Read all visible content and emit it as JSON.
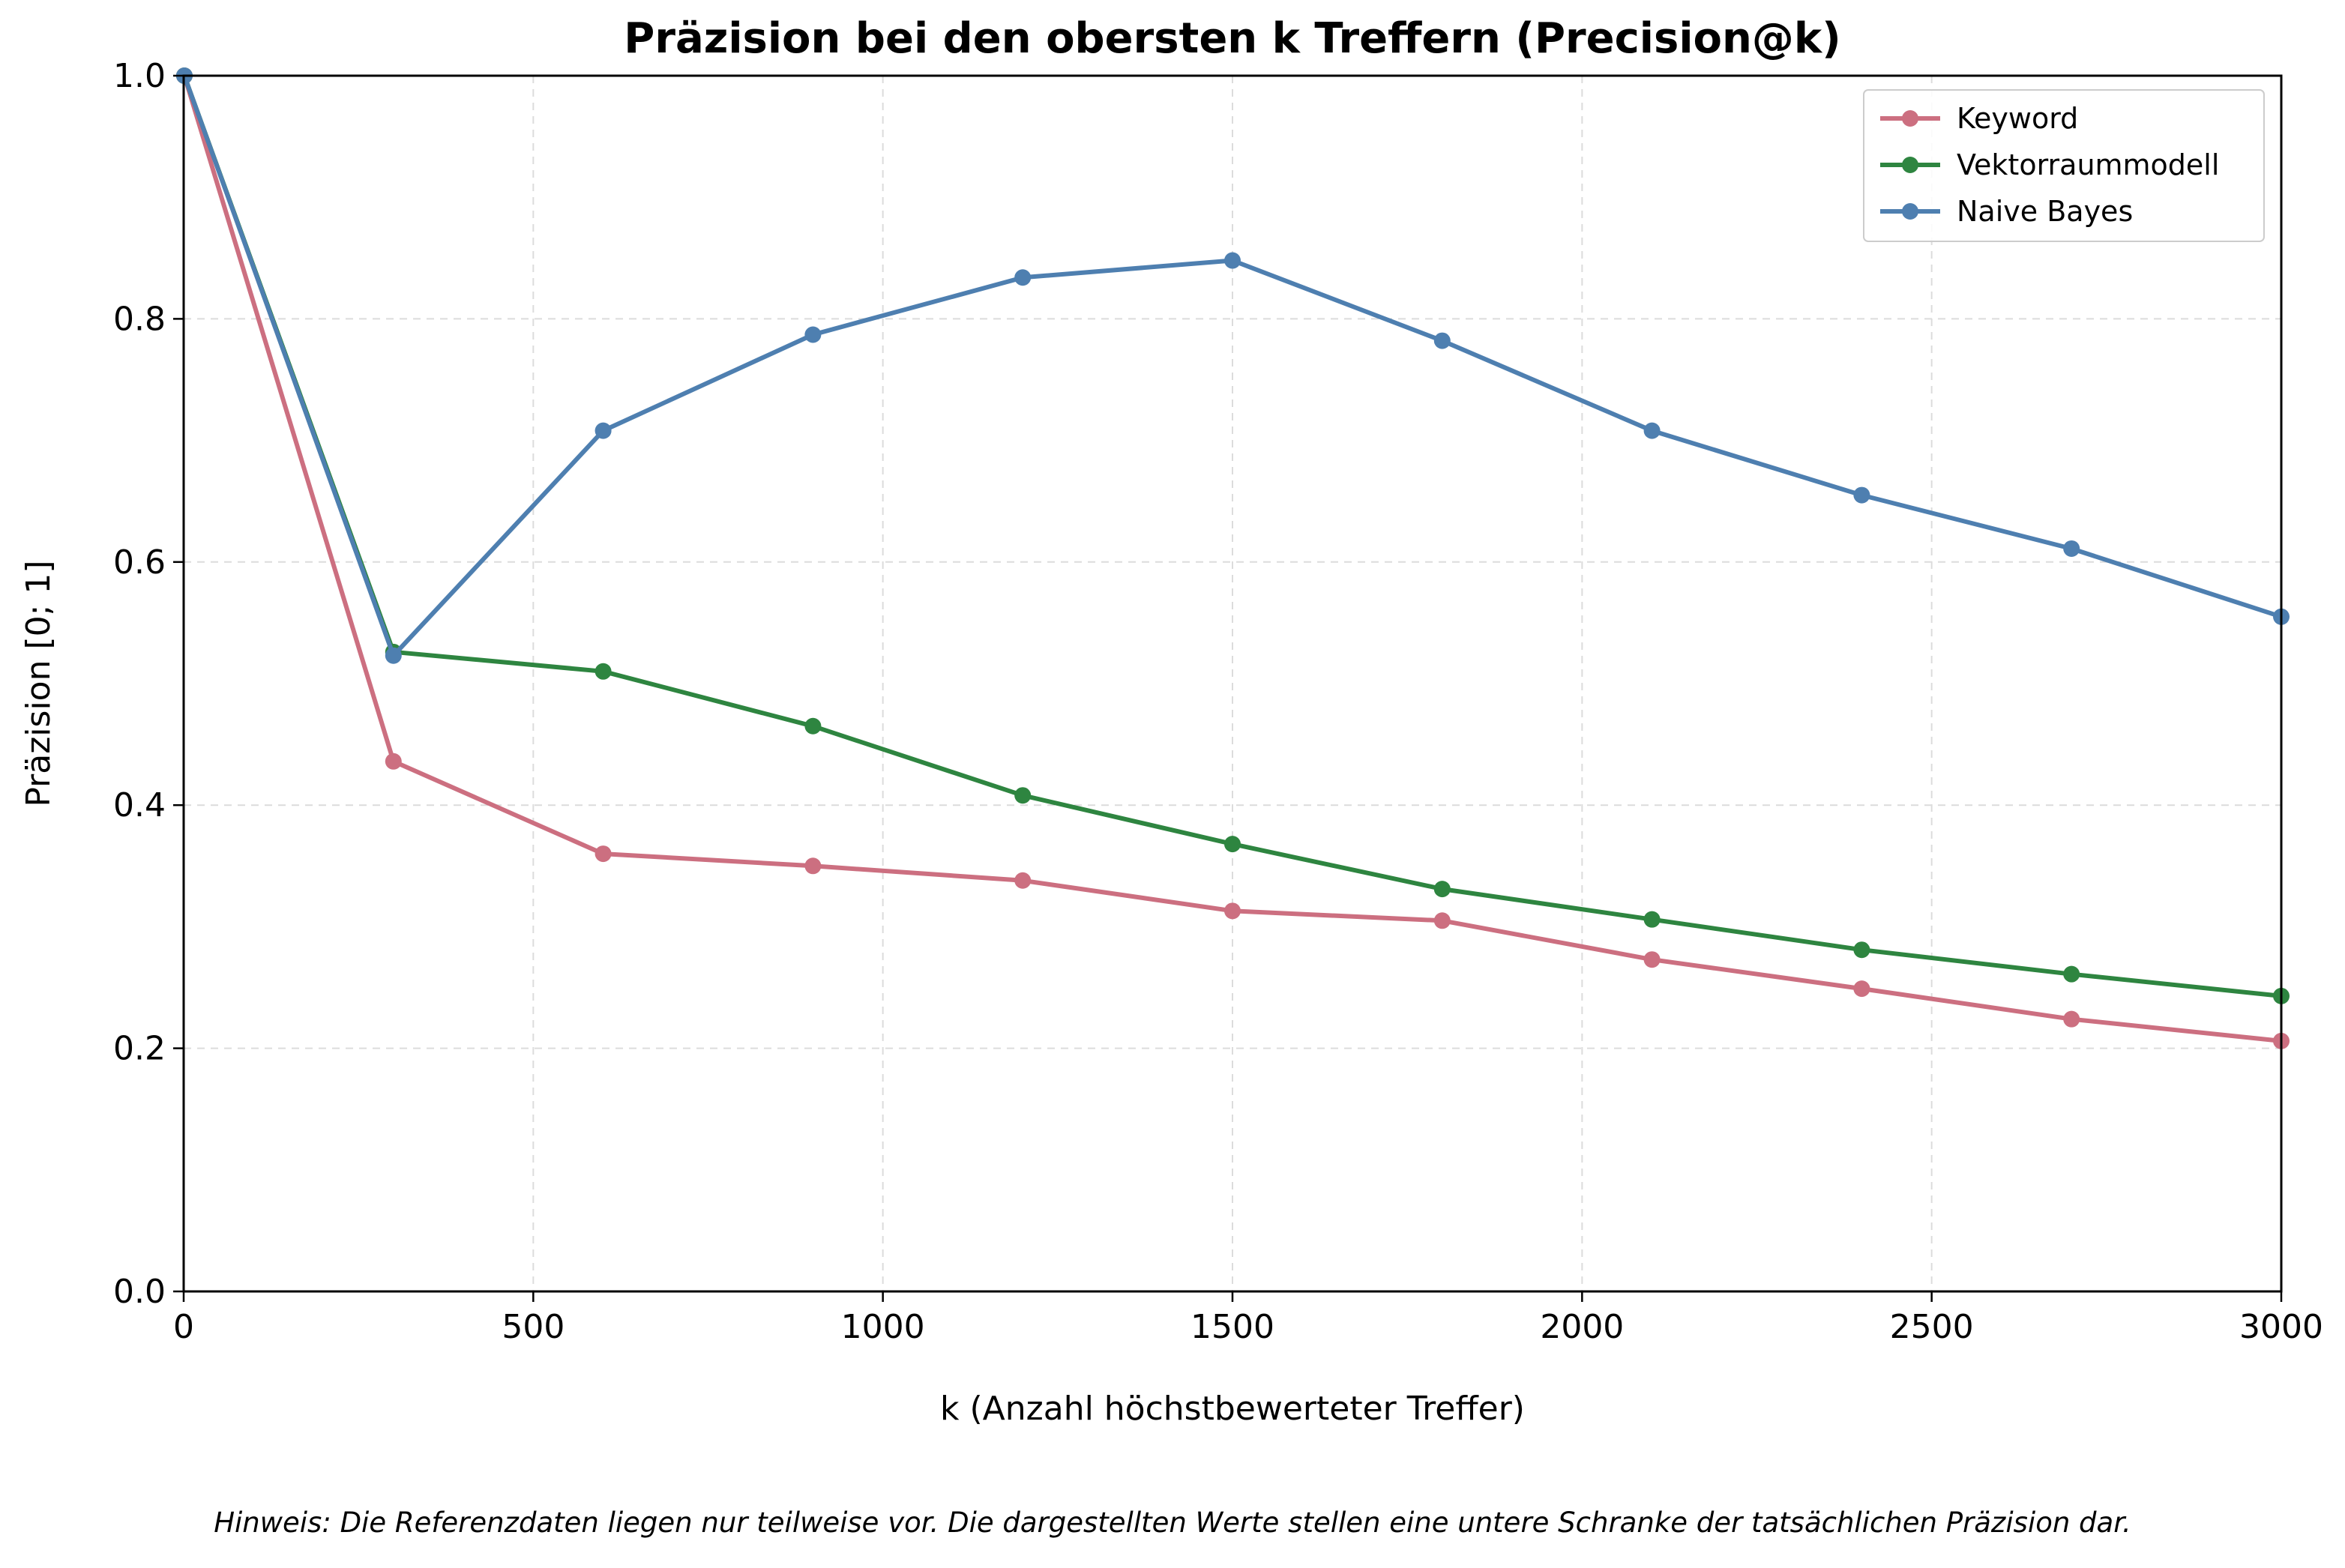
{
  "chart_data": {
    "type": "line",
    "title": "Präzision bei den obersten k Treffern (Precision@k)",
    "xlabel": "k (Anzahl höchstbewerteter Treffer)",
    "ylabel": "Präzision [0; 1]",
    "xlim": [
      0,
      3000
    ],
    "ylim": [
      0.0,
      1.0
    ],
    "xticks": [
      "0",
      "500",
      "1000",
      "1500",
      "2000",
      "2500",
      "3000"
    ],
    "yticks": [
      "0.0",
      "0.2",
      "0.4",
      "0.6",
      "0.8",
      "1.0"
    ],
    "grid": true,
    "legend_position": "top-right",
    "x": [
      1,
      300,
      600,
      900,
      1200,
      1500,
      1800,
      2100,
      2400,
      2700,
      3000
    ],
    "series": [
      {
        "name": "Keyword",
        "color": "#cc6f80",
        "values": [
          1.0,
          0.436,
          0.36,
          0.35,
          0.338,
          0.313,
          0.305,
          0.273,
          0.249,
          0.224,
          0.206
        ]
      },
      {
        "name": "Vektorraummodell",
        "color": "#2e8540",
        "values": [
          1.0,
          0.526,
          0.51,
          0.465,
          0.408,
          0.368,
          0.331,
          0.306,
          0.281,
          0.261,
          0.243
        ]
      },
      {
        "name": "Naive Bayes",
        "color": "#4e7fb0",
        "values": [
          1.0,
          0.523,
          0.708,
          0.787,
          0.834,
          0.848,
          0.782,
          0.708,
          0.655,
          0.611,
          0.555
        ]
      }
    ],
    "footnote": "Hinweis: Die Referenzdaten liegen nur teilweise vor. Die dargestellten Werte stellen eine untere Schranke der tatsächlichen Präzision dar."
  }
}
